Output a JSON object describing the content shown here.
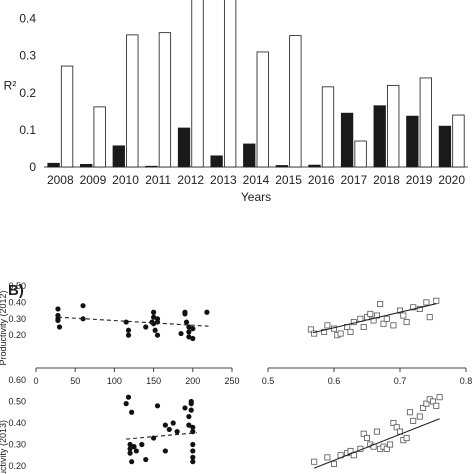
{
  "chart_data": [
    {
      "type": "bar",
      "panel": "A",
      "ylabel": "R²",
      "xlabel": "Years",
      "ylim": [
        0,
        0.45
      ],
      "yticks": [
        "0.1",
        "0.2",
        "0.3",
        "0.4"
      ],
      "categories": [
        "2008",
        "2009",
        "2010",
        "2011",
        "2012",
        "2013",
        "2014",
        "2015",
        "2016",
        "2017",
        "2018",
        "2019",
        "2020"
      ],
      "series": [
        {
          "fill": "#1a1a1a",
          "values": [
            0.01,
            0.007,
            0.057,
            0.002,
            0.105,
            0.03,
            0.062,
            0.004,
            0.005,
            0.145,
            0.165,
            0.137,
            0.11
          ]
        },
        {
          "fill": "#ffffff",
          "values": [
            0.272,
            0.162,
            0.356,
            0.362,
            0.48,
            0.48,
            0.31,
            0.354,
            0.216,
            0.07,
            0.22,
            0.24,
            0.14
          ]
        }
      ]
    },
    {
      "type": "scatter",
      "panel": "B1",
      "ylabel": "Productivity (2012)",
      "xlim": [
        0,
        250
      ],
      "ylim": [
        0.0,
        0.5
      ],
      "xticks": [
        "0",
        "50",
        "100",
        "150",
        "200",
        "250"
      ],
      "yticks": [
        "0.50",
        "0.40",
        "0.30",
        "0.20"
      ],
      "trend": "dashed",
      "trend_line": [
        [
          28,
          0.31
        ],
        [
          220,
          0.255
        ]
      ],
      "x": [
        28,
        28,
        28,
        28,
        30,
        60,
        60,
        115,
        118,
        118,
        140,
        148,
        150,
        150,
        150,
        152,
        155,
        155,
        155,
        185,
        190,
        190,
        192,
        195,
        195,
        195,
        200,
        200,
        218
      ],
      "y": [
        0.36,
        0.32,
        0.3,
        0.29,
        0.25,
        0.38,
        0.3,
        0.28,
        0.23,
        0.2,
        0.25,
        0.28,
        0.34,
        0.31,
        0.27,
        0.23,
        0.2,
        0.3,
        0.28,
        0.21,
        0.34,
        0.33,
        0.28,
        0.25,
        0.22,
        0.19,
        0.24,
        0.18,
        0.34
      ]
    },
    {
      "type": "scatter",
      "panel": "B2",
      "xlim": [
        0.5,
        0.8
      ],
      "ylim": [
        0.0,
        0.5
      ],
      "xticks": [
        "0.5",
        "0.6",
        "0.7",
        "0.8"
      ],
      "trend": "solid",
      "trend_line": [
        [
          0.568,
          0.215
        ],
        [
          0.755,
          0.392
        ]
      ],
      "x": [
        0.565,
        0.57,
        0.585,
        0.59,
        0.6,
        0.605,
        0.61,
        0.62,
        0.625,
        0.63,
        0.64,
        0.645,
        0.65,
        0.655,
        0.66,
        0.665,
        0.67,
        0.675,
        0.68,
        0.69,
        0.7,
        0.705,
        0.71,
        0.72,
        0.73,
        0.74,
        0.745,
        0.755
      ],
      "y": [
        0.235,
        0.21,
        0.22,
        0.26,
        0.24,
        0.2,
        0.21,
        0.25,
        0.22,
        0.28,
        0.3,
        0.25,
        0.31,
        0.33,
        0.29,
        0.32,
        0.39,
        0.27,
        0.3,
        0.26,
        0.35,
        0.32,
        0.28,
        0.37,
        0.36,
        0.4,
        0.31,
        0.41
      ]
    },
    {
      "type": "scatter",
      "panel": "B3",
      "ylabel": "uctivity (2013)",
      "xlim": [
        0,
        250
      ],
      "ylim": [
        0.0,
        0.6
      ],
      "yticks": [
        "0.60",
        "0.50",
        "0.40",
        "0.30",
        "0.20"
      ],
      "trend": "dashed",
      "trend_line": [
        [
          115,
          0.325
        ],
        [
          205,
          0.355
        ]
      ],
      "x": [
        115,
        118,
        120,
        120,
        120,
        122,
        122,
        125,
        128,
        135,
        140,
        150,
        155,
        165,
        165,
        170,
        175,
        180,
        190,
        195,
        195,
        198,
        198,
        198,
        200,
        200,
        200,
        200,
        200,
        200
      ],
      "y": [
        0.49,
        0.52,
        0.3,
        0.28,
        0.26,
        0.45,
        0.22,
        0.29,
        0.27,
        0.3,
        0.23,
        0.33,
        0.48,
        0.39,
        0.27,
        0.37,
        0.4,
        0.36,
        0.47,
        0.39,
        0.43,
        0.5,
        0.49,
        0.46,
        0.36,
        0.3,
        0.24,
        0.27,
        0.38,
        0.22
      ]
    },
    {
      "type": "scatter",
      "panel": "B4",
      "xlim": [
        0.5,
        0.8
      ],
      "ylim": [
        0.0,
        0.6
      ],
      "trend": "solid",
      "trend_line": [
        [
          0.57,
          0.19
        ],
        [
          0.76,
          0.42
        ]
      ],
      "x": [
        0.57,
        0.59,
        0.6,
        0.61,
        0.62,
        0.625,
        0.63,
        0.64,
        0.645,
        0.65,
        0.655,
        0.66,
        0.665,
        0.67,
        0.675,
        0.68,
        0.685,
        0.69,
        0.695,
        0.7,
        0.705,
        0.71,
        0.715,
        0.72,
        0.73,
        0.735,
        0.74,
        0.745,
        0.75,
        0.755,
        0.76
      ],
      "y": [
        0.22,
        0.24,
        0.21,
        0.25,
        0.26,
        0.27,
        0.25,
        0.28,
        0.35,
        0.33,
        0.3,
        0.29,
        0.36,
        0.28,
        0.29,
        0.28,
        0.3,
        0.4,
        0.38,
        0.36,
        0.32,
        0.33,
        0.45,
        0.41,
        0.43,
        0.47,
        0.49,
        0.51,
        0.5,
        0.48,
        0.52
      ]
    }
  ],
  "panel_label_b": "B)",
  "bar_ticks_below": [
    "0"
  ]
}
